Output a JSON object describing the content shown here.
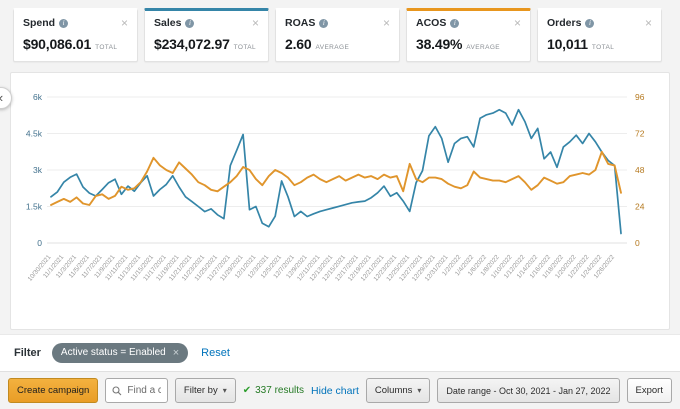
{
  "metrics": {
    "cards": [
      {
        "label": "Spend",
        "value": "$90,086.01",
        "suffix": "TOTAL",
        "selected": false,
        "accent": ""
      },
      {
        "label": "Sales",
        "value": "$234,072.97",
        "suffix": "TOTAL",
        "selected": true,
        "accent": "#3585a8"
      },
      {
        "label": "ROAS",
        "value": "2.60",
        "suffix": "AVERAGE",
        "selected": false,
        "accent": ""
      },
      {
        "label": "ACOS",
        "value": "38.49%",
        "suffix": "AVERAGE",
        "selected": true,
        "accent": "#e8961e"
      },
      {
        "label": "Orders",
        "value": "10,011",
        "suffix": "TOTAL",
        "selected": false,
        "accent": ""
      }
    ]
  },
  "chart_data": {
    "type": "line",
    "title": "",
    "grid": true,
    "legend_position": "none",
    "x_tick_labels": [
      "10/30/2021",
      "11/1/2021",
      "11/3/2021",
      "11/5/2021",
      "11/7/2021",
      "11/9/2021",
      "11/11/2021",
      "11/13/2021",
      "11/15/2021",
      "11/17/2021",
      "11/19/2021",
      "11/21/2021",
      "11/23/2021",
      "11/25/2021",
      "11/27/2021",
      "11/29/2021",
      "12/1/2021",
      "12/3/2021",
      "12/5/2021",
      "12/7/2021",
      "12/9/2021",
      "12/11/2021",
      "12/13/2021",
      "12/15/2021",
      "12/17/2021",
      "12/19/2021",
      "12/21/2021",
      "12/23/2021",
      "12/25/2021",
      "12/27/2021",
      "12/29/2021",
      "12/31/2021",
      "1/2/2022",
      "1/4/2022",
      "1/6/2022",
      "1/8/2022",
      "1/10/2022",
      "1/12/2022",
      "1/14/2022",
      "1/16/2022",
      "1/18/2022",
      "1/20/2022",
      "1/22/2022",
      "1/24/2022",
      "1/26/2022"
    ],
    "points_per_tick": 2,
    "left_axis": {
      "ticks": [
        "0",
        "1.5k",
        "3k",
        "4.5k",
        "6k"
      ],
      "min": 0,
      "max": 6000,
      "label_color": "#41708c"
    },
    "right_axis": {
      "ticks": [
        "0",
        "24",
        "48",
        "72",
        "96"
      ],
      "min": 0,
      "max": 96,
      "label_color": "#b5791f"
    },
    "series": [
      {
        "name": "Sales",
        "axis": "left",
        "color": "#3585a8",
        "values": [
          1900,
          2100,
          2500,
          2700,
          2830,
          2300,
          2050,
          1930,
          2200,
          2480,
          2620,
          2000,
          2340,
          2130,
          2480,
          2760,
          1930,
          2200,
          2410,
          2760,
          2300,
          1900,
          1700,
          1500,
          1290,
          1400,
          1160,
          1000,
          3180,
          3810,
          4460,
          1370,
          1500,
          810,
          670,
          1100,
          2550,
          1900,
          1090,
          1300,
          1090,
          1200,
          1300,
          1370,
          1440,
          1510,
          1580,
          1650,
          1690,
          1720,
          1860,
          2065,
          2340,
          1925,
          2065,
          1720,
          1300,
          2480,
          2970,
          4400,
          4780,
          4300,
          3320,
          4090,
          4300,
          4370,
          3950,
          5130,
          5270,
          5340,
          5480,
          5340,
          4850,
          5480,
          4990,
          4300,
          4710,
          3460,
          3740,
          3110,
          3950,
          4160,
          4430,
          4090,
          4500,
          4160,
          3740,
          3390,
          3180,
          390
        ]
      },
      {
        "name": "ACOS",
        "axis": "right",
        "color": "#e0952c",
        "values": [
          25,
          27,
          29,
          27,
          30,
          26,
          25,
          31,
          32,
          29,
          31,
          37,
          35,
          36,
          40,
          47,
          56,
          51,
          48,
          46,
          53,
          49,
          45,
          40,
          38,
          35,
          34,
          37,
          40,
          44,
          50,
          48,
          42,
          38,
          44,
          48,
          46,
          43,
          38,
          40,
          43,
          45,
          42,
          40,
          42,
          44,
          41,
          43,
          45,
          43,
          44,
          42,
          45,
          43,
          44,
          34,
          52,
          42,
          40,
          43,
          43,
          42,
          39,
          37,
          36,
          38,
          47,
          43,
          42,
          41,
          41,
          40,
          42,
          44,
          40,
          35,
          38,
          43,
          41,
          39,
          40,
          44,
          45,
          46,
          45,
          48,
          60,
          52,
          51,
          33
        ]
      }
    ]
  },
  "carousel": {
    "prev_glyph": "‹"
  },
  "filter_bar": {
    "label": "Filter",
    "pill": "Active status = Enabled",
    "pill_close": "×",
    "reset": "Reset"
  },
  "toolbar": {
    "create_campaign": "Create campaign",
    "search_placeholder": "Find a campaign",
    "filter_by": "Filter by",
    "results": "337 results",
    "check_glyph": "✔",
    "caret_glyph": "▾",
    "hide_chart": "Hide chart",
    "columns": "Columns",
    "date_range": "Date range - Oct 30, 2021 - Jan 27, 2022",
    "export": "Export"
  },
  "colors": {
    "link": "#0073bb",
    "green": "#257a25",
    "button_yellow": "#f0a62f"
  }
}
